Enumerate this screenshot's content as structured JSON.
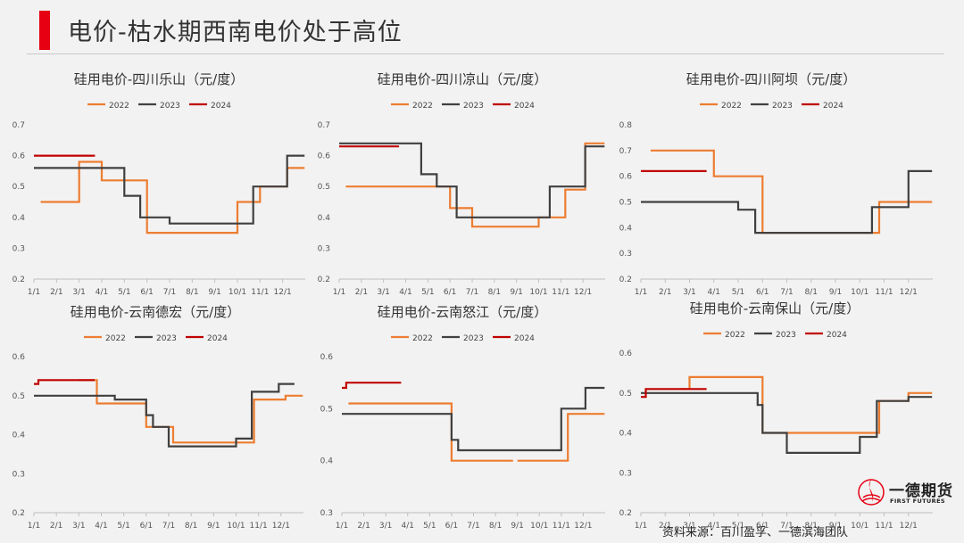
{
  "page": {
    "title": "电价-枯水期西南电价处于高位",
    "source": "资料来源：百川盈孚、一德滨海团队",
    "logo_cn": "一德期货",
    "logo_en": "FIRST FUTURES",
    "accent_color": "#e60012"
  },
  "series_colors": {
    "2022": "#ed7d31",
    "2023": "#404040",
    "2024": "#c00000"
  },
  "chart_data": [
    {
      "type": "line",
      "title": "硅用电价-四川乐山（元/度）",
      "xlabels": [
        "1/1",
        "2/1",
        "3/1",
        "4/1",
        "5/1",
        "6/1",
        "7/1",
        "8/1",
        "9/1",
        "10/1",
        "11/1",
        "12/1"
      ],
      "yticks": [
        "0.2",
        "0.3",
        "0.4",
        "0.5",
        "0.6",
        "0.7"
      ],
      "ylim": [
        0.2,
        0.7
      ],
      "legend": [
        "2022",
        "2023",
        "2024"
      ],
      "legend_position": "top",
      "grid": false,
      "series": [
        {
          "name": "2022",
          "points": [
            [
              1.3,
              0.45
            ],
            [
              3.0,
              0.45
            ],
            [
              3.0,
              0.58
            ],
            [
              4.0,
              0.58
            ],
            [
              4.0,
              0.52
            ],
            [
              6.0,
              0.52
            ],
            [
              6.0,
              0.35
            ],
            [
              10.0,
              0.35
            ],
            [
              10.0,
              0.45
            ],
            [
              11.0,
              0.45
            ],
            [
              11.0,
              0.5
            ],
            [
              12.2,
              0.5
            ],
            [
              12.2,
              0.56
            ],
            [
              12.97,
              0.56
            ]
          ]
        },
        {
          "name": "2023",
          "points": [
            [
              1.0,
              0.56
            ],
            [
              5.0,
              0.56
            ],
            [
              5.0,
              0.47
            ],
            [
              5.7,
              0.47
            ],
            [
              5.7,
              0.4
            ],
            [
              7.0,
              0.4
            ],
            [
              7.0,
              0.38
            ],
            [
              10.7,
              0.38
            ],
            [
              10.7,
              0.5
            ],
            [
              12.2,
              0.5
            ],
            [
              12.2,
              0.6
            ],
            [
              12.97,
              0.6
            ]
          ]
        },
        {
          "name": "2024",
          "points": [
            [
              1.0,
              0.6
            ],
            [
              3.7,
              0.6
            ]
          ]
        }
      ]
    },
    {
      "type": "line",
      "title": "硅用电价-四川凉山（元/度）",
      "xlabels": [
        "1/1",
        "2/1",
        "3/1",
        "4/1",
        "5/1",
        "6/1",
        "7/1",
        "8/1",
        "9/1",
        "10/1",
        "11/1",
        "12/1"
      ],
      "yticks": [
        "0.2",
        "0.3",
        "0.4",
        "0.5",
        "0.6",
        "0.7"
      ],
      "ylim": [
        0.2,
        0.7
      ],
      "legend": [
        "2022",
        "2023",
        "2024"
      ],
      "legend_position": "top",
      "grid": false,
      "series": [
        {
          "name": "2022",
          "points": [
            [
              1.3,
              0.5
            ],
            [
              6.0,
              0.5
            ],
            [
              6.0,
              0.43
            ],
            [
              7.0,
              0.43
            ],
            [
              7.0,
              0.37
            ],
            [
              10.0,
              0.37
            ],
            [
              10.0,
              0.4
            ],
            [
              11.2,
              0.4
            ],
            [
              11.2,
              0.49
            ],
            [
              12.1,
              0.49
            ],
            [
              12.1,
              0.64
            ],
            [
              12.97,
              0.64
            ]
          ]
        },
        {
          "name": "2023",
          "points": [
            [
              1.0,
              0.64
            ],
            [
              4.7,
              0.64
            ],
            [
              4.7,
              0.54
            ],
            [
              5.4,
              0.54
            ],
            [
              5.4,
              0.5
            ],
            [
              6.3,
              0.5
            ],
            [
              6.3,
              0.4
            ],
            [
              10.5,
              0.4
            ],
            [
              10.5,
              0.5
            ],
            [
              12.1,
              0.5
            ],
            [
              12.1,
              0.63
            ],
            [
              12.97,
              0.63
            ]
          ]
        },
        {
          "name": "2024",
          "points": [
            [
              1.0,
              0.63
            ],
            [
              3.7,
              0.63
            ]
          ]
        }
      ]
    },
    {
      "type": "line",
      "title": "硅用电价-四川阿坝（元/度）",
      "xlabels": [
        "1/1",
        "2/1",
        "3/1",
        "4/1",
        "5/1",
        "6/1",
        "7/1",
        "8/1",
        "9/1",
        "10/1",
        "11/1",
        "12/1"
      ],
      "yticks": [
        "0.2",
        "0.3",
        "0.4",
        "0.5",
        "0.6",
        "0.7",
        "0.8"
      ],
      "ylim": [
        0.2,
        0.8
      ],
      "legend": [
        "2022",
        "2023",
        "2024"
      ],
      "legend_position": "top",
      "grid": false,
      "series": [
        {
          "name": "2022",
          "points": [
            [
              1.4,
              0.7
            ],
            [
              4.0,
              0.7
            ],
            [
              4.0,
              0.6
            ],
            [
              6.0,
              0.6
            ],
            [
              6.0,
              0.38
            ],
            [
              10.8,
              0.38
            ],
            [
              10.8,
              0.5
            ],
            [
              12.97,
              0.5
            ]
          ]
        },
        {
          "name": "2023",
          "points": [
            [
              1.0,
              0.5
            ],
            [
              5.0,
              0.5
            ],
            [
              5.0,
              0.47
            ],
            [
              5.7,
              0.47
            ],
            [
              5.7,
              0.38
            ],
            [
              10.5,
              0.38
            ],
            [
              10.5,
              0.48
            ],
            [
              12.0,
              0.48
            ],
            [
              12.0,
              0.62
            ],
            [
              12.97,
              0.62
            ]
          ]
        },
        {
          "name": "2024",
          "points": [
            [
              1.0,
              0.62
            ],
            [
              3.7,
              0.62
            ]
          ]
        }
      ]
    },
    {
      "type": "line",
      "title": "硅用电价-云南德宏（元/度）",
      "xlabels": [
        "1/1",
        "2/1",
        "3/1",
        "4/1",
        "5/1",
        "6/1",
        "7/1",
        "8/1",
        "9/1",
        "10/1",
        "11/1",
        "12/1"
      ],
      "yticks": [
        "0.2",
        "0.3",
        "0.4",
        "0.5",
        "0.6"
      ],
      "ylim": [
        0.2,
        0.6
      ],
      "legend": [
        "2022",
        "2023",
        "2024"
      ],
      "legend_position": "top",
      "grid": false,
      "series": [
        {
          "name": "2022",
          "points": [
            [
              3.0,
              0.54
            ],
            [
              3.8,
              0.54
            ],
            [
              3.8,
              0.48
            ],
            [
              6.0,
              0.48
            ],
            [
              6.0,
              0.42
            ],
            [
              7.2,
              0.42
            ],
            [
              7.2,
              0.38
            ],
            [
              10.8,
              0.38
            ],
            [
              10.8,
              0.49
            ],
            [
              12.2,
              0.49
            ],
            [
              12.2,
              0.5
            ],
            [
              12.97,
              0.5
            ]
          ]
        },
        {
          "name": "2023",
          "points": [
            [
              1.0,
              0.5
            ],
            [
              4.6,
              0.5
            ],
            [
              4.6,
              0.49
            ],
            [
              6.0,
              0.49
            ],
            [
              6.0,
              0.45
            ],
            [
              6.3,
              0.45
            ],
            [
              6.3,
              0.42
            ],
            [
              7.0,
              0.42
            ],
            [
              7.0,
              0.37
            ],
            [
              10.0,
              0.37
            ],
            [
              10.0,
              0.39
            ],
            [
              10.7,
              0.39
            ],
            [
              10.7,
              0.51
            ],
            [
              11.9,
              0.51
            ],
            [
              11.9,
              0.53
            ],
            [
              12.6,
              0.53
            ]
          ]
        },
        {
          "name": "2024",
          "points": [
            [
              1.0,
              0.53
            ],
            [
              1.2,
              0.53
            ],
            [
              1.2,
              0.54
            ],
            [
              3.7,
              0.54
            ]
          ]
        }
      ]
    },
    {
      "type": "line",
      "title": "硅用电价-云南怒江（元/度）",
      "xlabels": [
        "1/1",
        "2/1",
        "3/1",
        "4/1",
        "5/1",
        "6/1",
        "7/1",
        "8/1",
        "9/1",
        "10/1",
        "11/1",
        "12/1"
      ],
      "yticks": [
        "0.3",
        "0.4",
        "0.5",
        "0.6"
      ],
      "ylim": [
        0.3,
        0.6
      ],
      "legend": [
        "2022",
        "2023",
        "2024"
      ],
      "legend_position": "top",
      "grid": false,
      "series": [
        {
          "name": "2022",
          "points": [
            [
              1.3,
              0.51
            ],
            [
              6.0,
              0.51
            ],
            [
              6.0,
              0.4
            ],
            [
              8.8,
              0.4
            ]
          ]
        },
        {
          "name": "2022",
          "points": [
            [
              9.0,
              0.4
            ],
            [
              11.3,
              0.4
            ],
            [
              11.3,
              0.49
            ],
            [
              12.97,
              0.49
            ]
          ]
        },
        {
          "name": "2023",
          "points": [
            [
              1.0,
              0.49
            ],
            [
              6.0,
              0.49
            ],
            [
              6.0,
              0.44
            ],
            [
              6.3,
              0.44
            ],
            [
              6.3,
              0.42
            ],
            [
              11.0,
              0.42
            ],
            [
              11.0,
              0.5
            ],
            [
              12.1,
              0.5
            ],
            [
              12.1,
              0.54
            ],
            [
              12.97,
              0.54
            ]
          ]
        },
        {
          "name": "2024",
          "points": [
            [
              1.0,
              0.54
            ],
            [
              1.2,
              0.54
            ],
            [
              1.2,
              0.55
            ],
            [
              3.7,
              0.55
            ]
          ]
        }
      ]
    },
    {
      "type": "line",
      "title": "硅用电价-云南保山（元/度）",
      "xlabels": [
        "1/1",
        "2/1",
        "3/1",
        "4/1",
        "5/1",
        "6/1",
        "7/1",
        "8/1",
        "9/1",
        "10/1",
        "11/1",
        "12/1"
      ],
      "yticks": [
        "0.2",
        "0.3",
        "0.4",
        "0.5",
        "0.6"
      ],
      "ylim": [
        0.2,
        0.6
      ],
      "legend": [
        "2022",
        "2023",
        "2024"
      ],
      "legend_position": "top",
      "grid": false,
      "series": [
        {
          "name": "2022",
          "points": [
            [
              2.6,
              0.51
            ],
            [
              3.0,
              0.51
            ],
            [
              3.0,
              0.54
            ],
            [
              6.0,
              0.54
            ],
            [
              6.0,
              0.4
            ],
            [
              10.8,
              0.4
            ],
            [
              10.8,
              0.48
            ],
            [
              12.0,
              0.48
            ],
            [
              12.0,
              0.5
            ],
            [
              12.97,
              0.5
            ]
          ]
        },
        {
          "name": "2023",
          "points": [
            [
              1.0,
              0.5
            ],
            [
              5.8,
              0.5
            ],
            [
              5.8,
              0.47
            ],
            [
              6.0,
              0.47
            ],
            [
              6.0,
              0.4
            ],
            [
              7.0,
              0.4
            ],
            [
              7.0,
              0.35
            ],
            [
              10.0,
              0.35
            ],
            [
              10.0,
              0.39
            ],
            [
              10.7,
              0.39
            ],
            [
              10.7,
              0.48
            ],
            [
              12.0,
              0.48
            ],
            [
              12.0,
              0.49
            ],
            [
              12.97,
              0.49
            ]
          ]
        },
        {
          "name": "2024",
          "points": [
            [
              1.0,
              0.49
            ],
            [
              1.2,
              0.49
            ],
            [
              1.2,
              0.51
            ],
            [
              3.7,
              0.51
            ]
          ]
        }
      ]
    }
  ]
}
